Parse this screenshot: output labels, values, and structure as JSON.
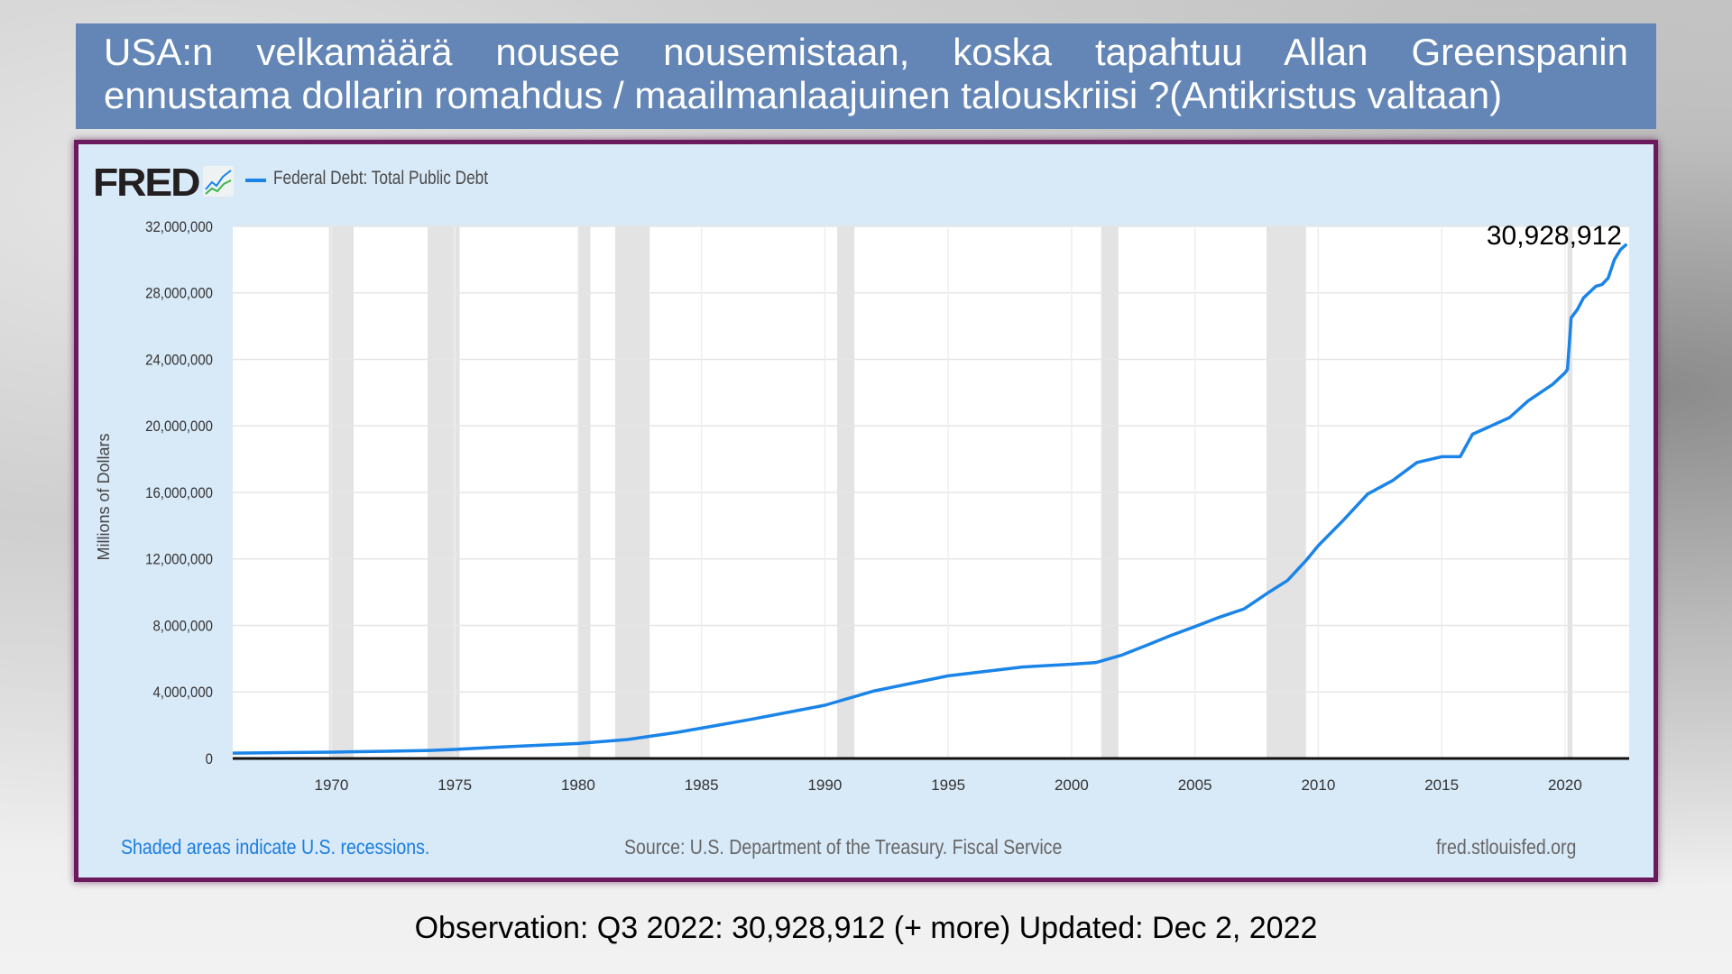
{
  "header": {
    "title_line1": "USA:n velkamäärä nousee nousemistaan, koska tapahtuu Allan Greenspanin",
    "title_line2": "ennustama dollarin romahdus / maailmanlaajuinen talouskriisi ?(Antikristus valtaan)"
  },
  "fred": {
    "logo": "FRED",
    "legend": "Federal Debt: Total Public Debt",
    "recession_note": "Shaded areas indicate U.S. recessions.",
    "source": "Source: U.S. Department of the Treasury. Fiscal Service",
    "site": "fred.stlouisfed.org"
  },
  "observation": "Observation: Q3 2022: 30,928,912 (+ more) Updated: Dec 2, 2022",
  "colors": {
    "line": "#1a84e8",
    "recession": "#e3e3e3",
    "title_bg": "#6386b6",
    "panel_bg": "#d8e9f8",
    "border": "#6b1a5e"
  },
  "chart_data": {
    "type": "line",
    "title": "Federal Debt: Total Public Debt",
    "ylabel": "Millions of Dollars",
    "xlabel": "",
    "xlim": [
      1966,
      2022.6
    ],
    "ylim": [
      0,
      32000000
    ],
    "yticks": [
      0,
      4000000,
      8000000,
      12000000,
      16000000,
      20000000,
      24000000,
      28000000,
      32000000
    ],
    "ytick_labels": [
      "0",
      "4,000,000",
      "8,000,000",
      "12,000,000",
      "16,000,000",
      "20,000,000",
      "24,000,000",
      "28,000,000",
      "32,000,000"
    ],
    "xticks": [
      1970,
      1975,
      1980,
      1985,
      1990,
      1995,
      2000,
      2005,
      2010,
      2015,
      2020
    ],
    "xtick_labels": [
      "1970",
      "1975",
      "1980",
      "1985",
      "1990",
      "1995",
      "2000",
      "2005",
      "2010",
      "2015",
      "2020"
    ],
    "annotation": "30,928,912",
    "grid": true,
    "recessions": [
      [
        1969.9,
        1970.9
      ],
      [
        1973.9,
        1975.2
      ],
      [
        1980.0,
        1980.5
      ],
      [
        1981.5,
        1982.9
      ],
      [
        1990.5,
        1991.2
      ],
      [
        2001.2,
        2001.9
      ],
      [
        2007.9,
        2009.5
      ],
      [
        2020.1,
        2020.3
      ]
    ],
    "series": [
      {
        "name": "Federal Debt: Total Public Debt",
        "x": [
          1966,
          1968,
          1970,
          1972,
          1974,
          1975,
          1977,
          1980,
          1982,
          1984,
          1985,
          1987,
          1990,
          1992,
          1995,
          1998,
          2000,
          2001,
          2002,
          2003,
          2004,
          2005,
          2006,
          2007,
          2008,
          2008.75,
          2009.5,
          2010,
          2011,
          2012,
          2013,
          2014,
          2015,
          2015.75,
          2016.25,
          2017,
          2017.75,
          2018.5,
          2019,
          2019.5,
          2020.0,
          2020.1,
          2020.25,
          2020.5,
          2020.75,
          2021.25,
          2021.5,
          2021.75,
          2022.0,
          2022.25,
          2022.5
        ],
        "values": [
          320000,
          350000,
          380000,
          430000,
          480000,
          540000,
          700000,
          900000,
          1140000,
          1570000,
          1820000,
          2350000,
          3200000,
          4060000,
          4970000,
          5500000,
          5670000,
          5770000,
          6200000,
          6780000,
          7380000,
          7930000,
          8500000,
          9000000,
          10000000,
          10700000,
          11900000,
          12800000,
          14300000,
          15900000,
          16700000,
          17800000,
          18150000,
          18150000,
          19500000,
          20000000,
          20500000,
          21500000,
          22000000,
          22500000,
          23200000,
          23400000,
          26500000,
          27000000,
          27700000,
          28400000,
          28500000,
          28900000,
          30000000,
          30600000,
          30928912
        ]
      }
    ]
  }
}
